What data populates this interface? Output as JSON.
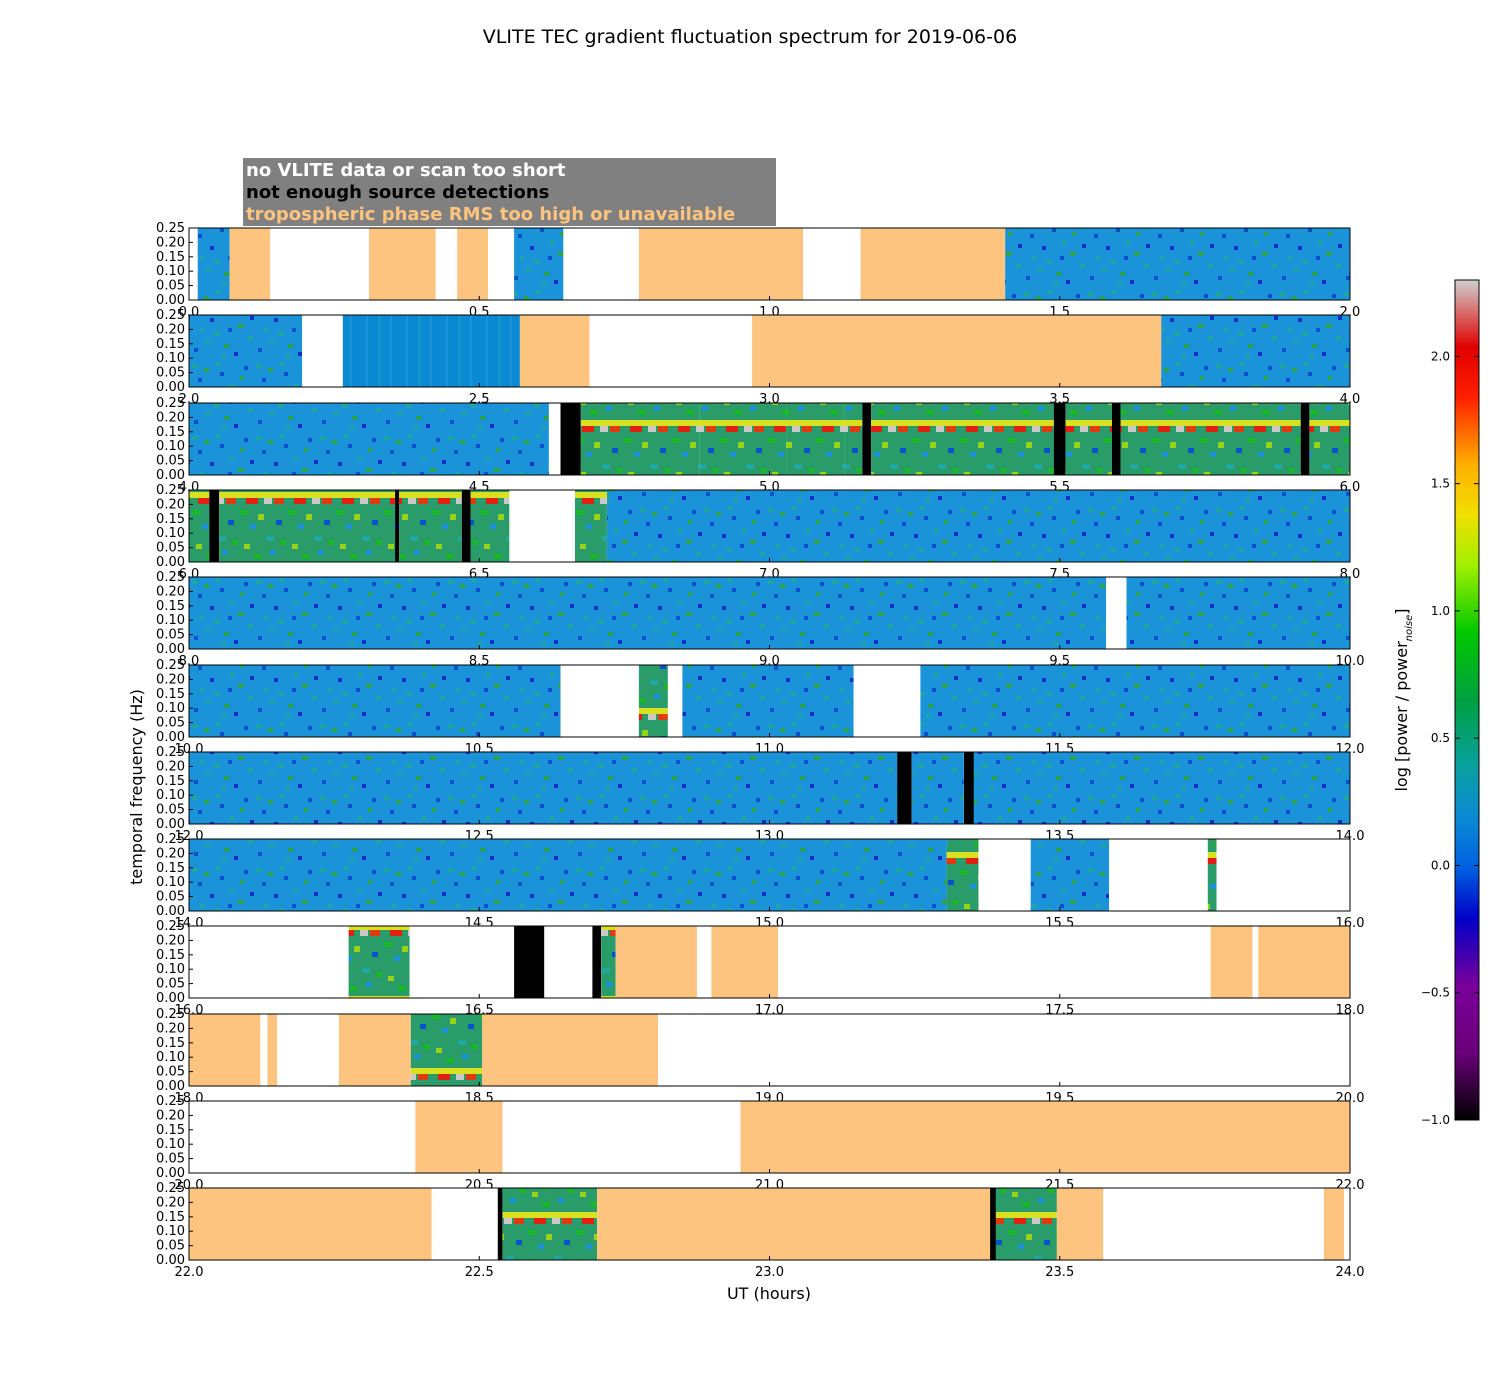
{
  "chart_data": {
    "type": "heatmap",
    "title": "VLITE TEC gradient fluctuation spectrum for 2019-06-06",
    "xlabel": "UT (hours)",
    "ylabel": "temporal frequency (Hz)",
    "colorbar_label": "log [power / power",
    "colorbar_label_sub": "noise",
    "colorbar_label_close": "]",
    "colorbar_range": [
      -1.0,
      2.3
    ],
    "colorbar_ticks": [
      "−1.0",
      "−0.5",
      "0.0",
      "0.5",
      "1.0",
      "1.5",
      "2.0"
    ],
    "colorbar_tick_values": [
      -1.0,
      -0.5,
      0.0,
      0.5,
      1.0,
      1.5,
      2.0
    ],
    "ylim": [
      0,
      0.25
    ],
    "ytick_labels": [
      "0.00",
      "0.05",
      "0.10",
      "0.15",
      "0.20",
      "0.25"
    ],
    "colors": {
      "no_data": "#ffffff",
      "no_detections": "#000000",
      "rms_high": "#fdc47f",
      "legend_box": "#808080",
      "noise_level": "#0b8ad4"
    },
    "legend": [
      {
        "text": "no VLITE data or scan too short",
        "color": "#ffffff"
      },
      {
        "text": "not enough source detections",
        "color": "#000000"
      },
      {
        "text": "tropospheric phase RMS too high or unavailable",
        "color": "#fdc47f"
      }
    ],
    "panels": [
      {
        "xlim": [
          0.0,
          2.0
        ],
        "xticks": [
          "0.0",
          "0.5",
          "1.0",
          "1.5",
          "2.0"
        ],
        "segments": [
          [
            "nd",
            0,
            0.015
          ],
          [
            "sp",
            0.015,
            0.07
          ],
          [
            "rms",
            0.07,
            0.14
          ],
          [
            "nd",
            0.14,
            0.31
          ],
          [
            "rms",
            0.31,
            0.425
          ],
          [
            "nd",
            0.425,
            0.462
          ],
          [
            "rms",
            0.462,
            0.515
          ],
          [
            "nd",
            0.515,
            0.56
          ],
          [
            "sp",
            0.56,
            0.645
          ],
          [
            "nd",
            0.645,
            0.775
          ],
          [
            "rms",
            0.775,
            1.058
          ],
          [
            "nd",
            1.058,
            1.157
          ],
          [
            "rms",
            1.157,
            1.406
          ],
          [
            "sp",
            1.406,
            2.0
          ]
        ]
      },
      {
        "xlim": [
          2.0,
          4.0
        ],
        "xticks": [
          "2.0",
          "2.5",
          "3.0",
          "3.5",
          "4.0"
        ],
        "segments": [
          [
            "sp",
            2.0,
            2.195
          ],
          [
            "nd",
            2.195,
            2.265
          ],
          [
            "flat",
            2.265,
            2.57
          ],
          [
            "rms",
            2.57,
            2.69
          ],
          [
            "nd",
            2.69,
            2.97
          ],
          [
            "rms",
            2.97,
            3.675
          ],
          [
            "sp",
            3.675,
            4.0
          ]
        ]
      },
      {
        "xlim": [
          4.0,
          6.0
        ],
        "xticks": [
          "4.0",
          "4.5",
          "5.0",
          "5.5",
          "6.0"
        ],
        "segments": [
          [
            "sp",
            4.0,
            4.62
          ],
          [
            "nd",
            4.62,
            4.64
          ],
          [
            "blk",
            4.64,
            4.675
          ],
          [
            "act",
            4.675,
            4.88
          ],
          [
            "act",
            4.88,
            5.03
          ],
          [
            "act",
            5.03,
            5.13
          ],
          [
            "act",
            5.13,
            5.16
          ],
          [
            "blk",
            5.16,
            5.175
          ],
          [
            "act",
            5.175,
            5.49
          ],
          [
            "blk",
            5.49,
            5.51
          ],
          [
            "act",
            5.51,
            5.59
          ],
          [
            "blk",
            5.59,
            5.605
          ],
          [
            "act",
            5.605,
            5.915
          ],
          [
            "blk",
            5.915,
            5.93
          ],
          [
            "act",
            5.93,
            6.0
          ]
        ]
      },
      {
        "xlim": [
          6.0,
          8.0
        ],
        "xticks": [
          "6.0",
          "6.5",
          "7.0",
          "7.5",
          "8.0"
        ],
        "segments": [
          [
            "act",
            6.0,
            6.035
          ],
          [
            "blk",
            6.035,
            6.052
          ],
          [
            "act",
            6.052,
            6.355
          ],
          [
            "blk",
            6.355,
            6.362
          ],
          [
            "act",
            6.362,
            6.47
          ],
          [
            "blk",
            6.47,
            6.485
          ],
          [
            "act",
            6.485,
            6.552
          ],
          [
            "nd",
            6.552,
            6.665
          ],
          [
            "act",
            6.665,
            6.72
          ],
          [
            "sp",
            6.72,
            8.0
          ]
        ]
      },
      {
        "xlim": [
          8.0,
          10.0
        ],
        "xticks": [
          "8.0",
          "8.5",
          "9.0",
          "9.5",
          "10.0"
        ],
        "segments": [
          [
            "sp",
            8.0,
            9.58
          ],
          [
            "nd",
            9.58,
            9.615
          ],
          [
            "sp",
            9.615,
            10.0
          ]
        ]
      },
      {
        "xlim": [
          10.0,
          12.0
        ],
        "xticks": [
          "10.0",
          "10.5",
          "11.0",
          "11.5",
          "12.0"
        ],
        "segments": [
          [
            "sp",
            10.0,
            10.64
          ],
          [
            "nd",
            10.64,
            10.775
          ],
          [
            "act",
            10.775,
            10.825
          ],
          [
            "nd",
            10.825,
            10.85
          ],
          [
            "sp",
            10.85,
            11.145
          ],
          [
            "nd",
            11.145,
            11.26
          ],
          [
            "sp",
            11.26,
            12.0
          ]
        ]
      },
      {
        "xlim": [
          12.0,
          14.0
        ],
        "xticks": [
          "12.0",
          "12.5",
          "13.0",
          "13.5",
          "14.0"
        ],
        "segments": [
          [
            "sp",
            12.0,
            13.22
          ],
          [
            "blk",
            13.22,
            13.245
          ],
          [
            "sp",
            13.245,
            13.335
          ],
          [
            "blk",
            13.335,
            13.352
          ],
          [
            "sp",
            13.352,
            14.0
          ]
        ]
      },
      {
        "xlim": [
          14.0,
          16.0
        ],
        "xticks": [
          "14.0",
          "14.5",
          "15.0",
          "15.5",
          "16.0"
        ],
        "segments": [
          [
            "sp",
            14.0,
            15.305
          ],
          [
            "act",
            15.305,
            15.36
          ],
          [
            "nd",
            15.36,
            15.45
          ],
          [
            "sp",
            15.45,
            15.585
          ],
          [
            "nd",
            15.585,
            15.755
          ],
          [
            "act",
            15.755,
            15.77
          ],
          [
            "nd",
            15.77,
            16.0
          ]
        ]
      },
      {
        "xlim": [
          16.0,
          18.0
        ],
        "xticks": [
          "16.0",
          "16.5",
          "17.0",
          "17.5",
          "18.0"
        ],
        "segments": [
          [
            "nd",
            16.0,
            16.275
          ],
          [
            "act",
            16.275,
            16.38
          ],
          [
            "nd",
            16.38,
            16.56
          ],
          [
            "blk",
            16.56,
            16.612
          ],
          [
            "nd",
            16.612,
            16.695
          ],
          [
            "blk",
            16.695,
            16.71
          ],
          [
            "act",
            16.71,
            16.735
          ],
          [
            "rms",
            16.735,
            16.875
          ],
          [
            "nd",
            16.875,
            16.9
          ],
          [
            "rms",
            16.9,
            17.015
          ],
          [
            "nd",
            17.015,
            17.76
          ],
          [
            "rms",
            17.76,
            17.832
          ],
          [
            "nd",
            17.832,
            17.842
          ],
          [
            "rms",
            17.842,
            18.0
          ]
        ]
      },
      {
        "xlim": [
          18.0,
          20.0
        ],
        "xticks": [
          "18.0",
          "18.5",
          "19.0",
          "19.5",
          "20.0"
        ],
        "segments": [
          [
            "rms",
            18.0,
            18.123
          ],
          [
            "nd",
            18.123,
            18.135
          ],
          [
            "rms",
            18.135,
            18.152
          ],
          [
            "nd",
            18.152,
            18.258
          ],
          [
            "rms",
            18.258,
            18.382
          ],
          [
            "act",
            18.382,
            18.505
          ],
          [
            "rms",
            18.505,
            18.808
          ],
          [
            "nd",
            18.808,
            20.0
          ]
        ]
      },
      {
        "xlim": [
          20.0,
          22.0
        ],
        "xticks": [
          "20.0",
          "20.5",
          "21.0",
          "21.5",
          "22.0"
        ],
        "segments": [
          [
            "nd",
            20.0,
            20.39
          ],
          [
            "rms",
            20.39,
            20.54
          ],
          [
            "nd",
            20.54,
            20.95
          ],
          [
            "rms",
            20.95,
            22.0
          ]
        ]
      },
      {
        "xlim": [
          22.0,
          24.0
        ],
        "xticks": [
          "22.0",
          "22.5",
          "23.0",
          "23.5",
          "24.0"
        ],
        "segments": [
          [
            "rms",
            22.0,
            22.418
          ],
          [
            "nd",
            22.418,
            22.532
          ],
          [
            "blk",
            22.532,
            22.54
          ],
          [
            "act",
            22.54,
            22.703
          ],
          [
            "rms",
            22.703,
            23.38
          ],
          [
            "blk",
            23.38,
            23.39
          ],
          [
            "act",
            23.39,
            23.495
          ],
          [
            "rms",
            23.495,
            23.575
          ],
          [
            "nd",
            23.575,
            23.955
          ],
          [
            "rms",
            23.955,
            23.99
          ],
          [
            "nd",
            23.99,
            24.0
          ]
        ]
      }
    ]
  }
}
